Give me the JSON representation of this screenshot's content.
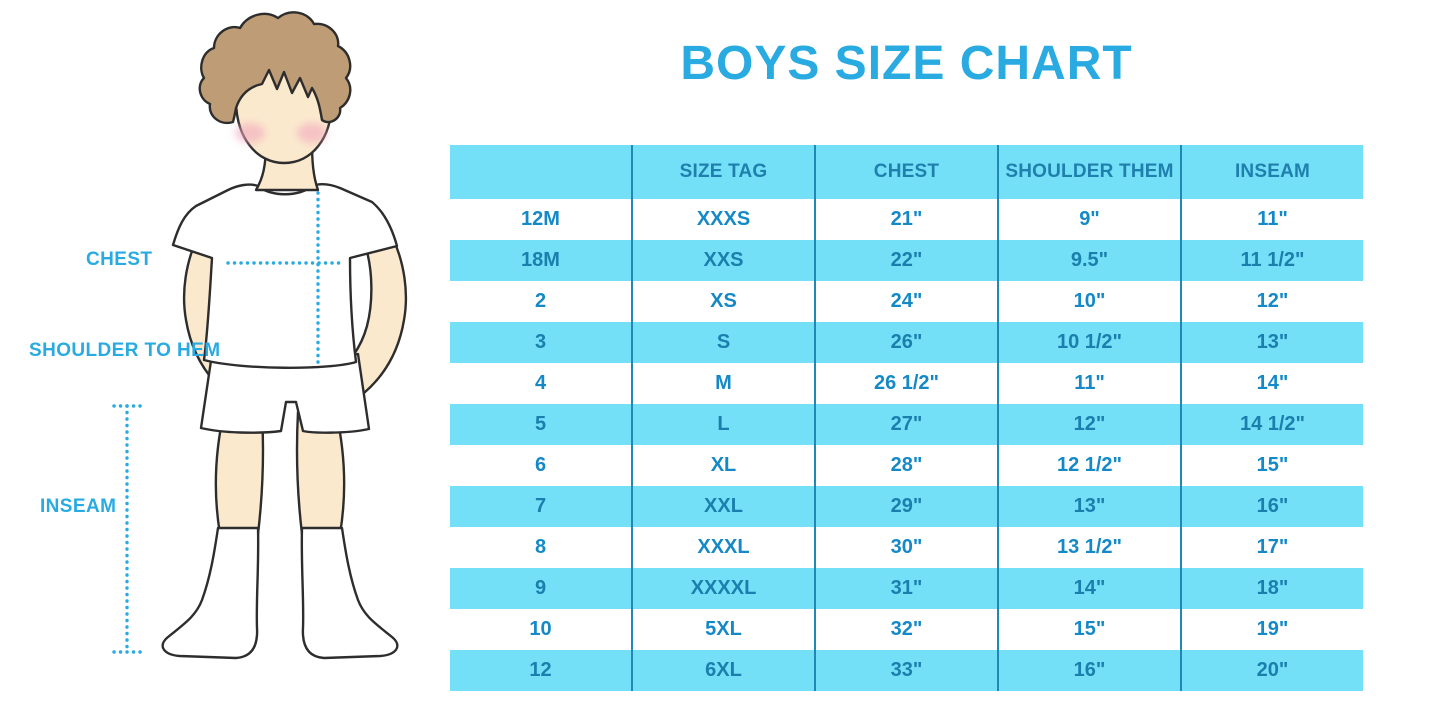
{
  "title": "BOYS SIZE CHART",
  "illustration": {
    "labels": {
      "chest": "CHEST",
      "shoulder_to_hem": "SHOULDER TO HEM",
      "inseam": "INSEAM"
    }
  },
  "colors": {
    "accent_blue": "#29ABE2",
    "row_cyan": "#73E0F8",
    "divider_blue": "#2187B5",
    "header_text": "#1F7FAD",
    "cell_text": "#1589C7",
    "cell_text_cyan": "#1B7FAE",
    "skin": "#FBE9CE",
    "hair": "#BD9C76",
    "blush": "#F2A9BC",
    "outline": "#2D2D2D"
  },
  "chart_data": {
    "type": "table",
    "title": "BOYS SIZE CHART",
    "columns": [
      "",
      "SIZE TAG",
      "CHEST",
      "SHOULDER THEM",
      "INSEAM"
    ],
    "rows": [
      [
        "12M",
        "XXXS",
        "21\"",
        "9\"",
        "11\""
      ],
      [
        "18M",
        "XXS",
        "22\"",
        "9.5\"",
        "11 1/2\""
      ],
      [
        "2",
        "XS",
        "24\"",
        "10\"",
        "12\""
      ],
      [
        "3",
        "S",
        "26\"",
        "10 1/2\"",
        "13\""
      ],
      [
        "4",
        "M",
        "26 1/2\"",
        "11\"",
        "14\""
      ],
      [
        "5",
        "L",
        "27\"",
        "12\"",
        "14 1/2\""
      ],
      [
        "6",
        "XL",
        "28\"",
        "12 1/2\"",
        "15\""
      ],
      [
        "7",
        "XXL",
        "29\"",
        "13\"",
        "16\""
      ],
      [
        "8",
        "XXXL",
        "30\"",
        "13 1/2\"",
        "17\""
      ],
      [
        "9",
        "XXXXL",
        "31\"",
        "14\"",
        "18\""
      ],
      [
        "10",
        "5XL",
        "32\"",
        "15\"",
        "19\""
      ],
      [
        "12",
        "6XL",
        "33\"",
        "16\"",
        "20\""
      ]
    ],
    "layout_hints": {
      "header_background": "cyan",
      "row_striping": "white / cyan alternating starting white",
      "measurement_labels": [
        "CHEST",
        "SHOULDER TO HEM",
        "INSEAM"
      ]
    }
  }
}
